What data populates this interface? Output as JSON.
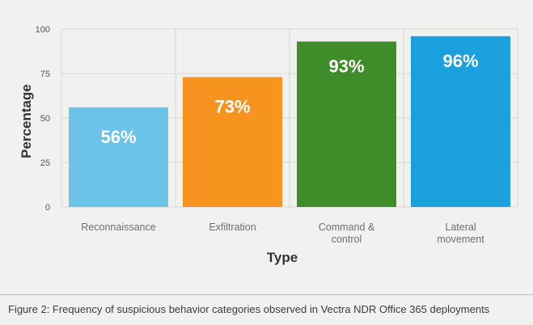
{
  "chart_data": {
    "type": "bar",
    "title": "",
    "xlabel": "Type",
    "ylabel": "Percentage",
    "ylim": [
      0,
      100
    ],
    "yticks": [
      0,
      25,
      50,
      75,
      100
    ],
    "grid": true,
    "categories": [
      [
        "Reconnaissance"
      ],
      [
        "Exfiltration"
      ],
      [
        "Command &",
        "control"
      ],
      [
        "Lateral",
        "movement"
      ]
    ],
    "values": [
      56,
      73,
      93,
      96
    ],
    "data_labels": [
      "56%",
      "73%",
      "93%",
      "96%"
    ],
    "colors": [
      "#6cc3ea",
      "#f6941f",
      "#3e8c2a",
      "#1aa0dd"
    ]
  },
  "caption": "Figure 2: Frequency of suspicious behavior categories observed in Vectra NDR Office 365 deployments"
}
